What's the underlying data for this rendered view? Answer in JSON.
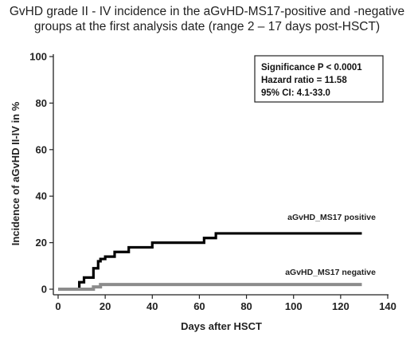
{
  "chart_data": {
    "type": "line",
    "title": [
      "GvHD grade II - IV incidence in the aGvHD-MS17-positive and -negative",
      "groups at the first analysis date (range 2 – 17 days post-HSCT)"
    ],
    "xlabel": "Days after HSCT",
    "ylabel": "Incidence of aGvHD II-IV in %",
    "xlim": [
      0,
      140
    ],
    "ylim": [
      0,
      100
    ],
    "xticks": [
      0,
      20,
      40,
      60,
      80,
      100,
      120,
      140
    ],
    "yticks": [
      0,
      20,
      40,
      60,
      80,
      100
    ],
    "grid": false,
    "step": true,
    "series": [
      {
        "name": "aGvHD_MS17 positive",
        "color": "#000000",
        "x": [
          0,
          9,
          11,
          15,
          17,
          18,
          20,
          24,
          30,
          40,
          62,
          67,
          129
        ],
        "y": [
          0,
          3,
          5,
          9,
          12,
          13,
          14,
          16,
          18,
          20,
          22,
          24,
          24
        ]
      },
      {
        "name": "aGvHD_MS17 negative",
        "color": "#8c8c8c",
        "x": [
          0,
          10,
          15,
          18,
          129
        ],
        "y": [
          0,
          0,
          1,
          2,
          2
        ]
      }
    ],
    "annotations": [
      "Significance P < 0.0001",
      "Hazard ratio = 11.58",
      "95% CI: 4.1-33.0"
    ]
  }
}
